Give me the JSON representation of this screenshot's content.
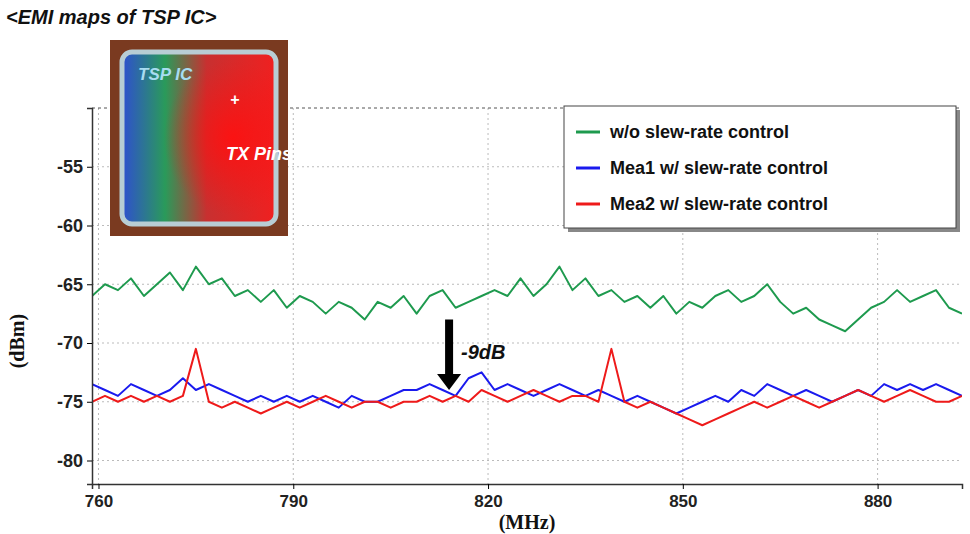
{
  "chart_data": {
    "type": "line",
    "title": "<EMI maps of TSP IC>",
    "x_label": "(MHz)",
    "y_label": "(dBm)",
    "inset_labels": [
      "TSP IC",
      "+",
      "TX Pins"
    ],
    "annotations": [
      {
        "text": "-9dB",
        "x": 814,
        "y_start": -68,
        "y_end": -74
      }
    ],
    "xlim": [
      759,
      893
    ],
    "xticks": [
      760,
      790,
      820,
      850,
      880
    ],
    "ylim": [
      -82,
      -50
    ],
    "yticks": [
      -80,
      -75,
      -70,
      -65,
      -60,
      -55
    ],
    "grid": true,
    "legend": "upper right",
    "x": [
      759,
      761,
      763,
      765,
      767,
      769,
      771,
      773,
      775,
      777,
      779,
      781,
      783,
      785,
      787,
      789,
      791,
      793,
      795,
      797,
      799,
      801,
      803,
      805,
      807,
      809,
      811,
      813,
      815,
      817,
      819,
      821,
      823,
      825,
      827,
      829,
      831,
      833,
      835,
      837,
      839,
      841,
      843,
      845,
      847,
      849,
      851,
      853,
      855,
      857,
      859,
      861,
      863,
      865,
      867,
      869,
      871,
      873,
      875,
      877,
      879,
      881,
      883,
      885,
      887,
      889,
      891,
      893
    ],
    "series": [
      {
        "name": "w/o slew-rate control",
        "color": "#1e9a4e",
        "values": [
          -66,
          -65,
          -65.5,
          -64.5,
          -66,
          -65,
          -64,
          -65.5,
          -63.5,
          -65,
          -64.5,
          -66,
          -65.5,
          -66.5,
          -65.5,
          -67,
          -66,
          -66.5,
          -67.5,
          -66.5,
          -67,
          -68,
          -66.5,
          -67,
          -66,
          -67.5,
          -66,
          -65.5,
          -67,
          -66.5,
          -66,
          -65.5,
          -66,
          -64.5,
          -66,
          -65,
          -63.5,
          -65.5,
          -64.5,
          -66,
          -65.5,
          -66.5,
          -66,
          -67,
          -66,
          -67.5,
          -66.5,
          -67,
          -66,
          -65.5,
          -66.5,
          -66,
          -65,
          -66.5,
          -67.5,
          -67,
          -68,
          -68.5,
          -69,
          -68,
          -67,
          -66.5,
          -65.5,
          -66.5,
          -66,
          -65.5,
          -67,
          -67.5
        ]
      },
      {
        "name": "Mea1 w/ slew-rate control",
        "color": "#1a1aee",
        "values": [
          -73.5,
          -74,
          -74.5,
          -73.5,
          -74,
          -74.5,
          -74,
          -73,
          -74,
          -73.5,
          -74,
          -74.5,
          -75,
          -74.5,
          -75,
          -74.5,
          -75,
          -74.5,
          -75,
          -75.5,
          -74.5,
          -75,
          -75,
          -74.5,
          -74,
          -74,
          -73.5,
          -74,
          -74.5,
          -73,
          -72.5,
          -74,
          -73.5,
          -74,
          -74.5,
          -74,
          -73.5,
          -74,
          -74.5,
          -74,
          -74.5,
          -75,
          -74.5,
          -75,
          -75.5,
          -76,
          -75.5,
          -75,
          -74.5,
          -75,
          -74,
          -74.5,
          -73.5,
          -74,
          -74.5,
          -74,
          -74.5,
          -75,
          -74.5,
          -74,
          -74.5,
          -73.5,
          -74,
          -73.5,
          -74,
          -73.5,
          -74,
          -74.5
        ]
      },
      {
        "name": "Mea2 w/ slew-rate control",
        "color": "#ee1a1a",
        "values": [
          -75,
          -74.5,
          -75,
          -74.5,
          -75,
          -74.5,
          -75,
          -74.5,
          -70.5,
          -75,
          -75.5,
          -75,
          -75.5,
          -76,
          -75.5,
          -75,
          -75.5,
          -75,
          -74.5,
          -75,
          -75.5,
          -75,
          -75,
          -75.5,
          -75,
          -75,
          -74.5,
          -75,
          -74.5,
          -75,
          -74,
          -74.5,
          -75,
          -74.5,
          -74,
          -74.5,
          -75,
          -74.5,
          -74.5,
          -75,
          -70.5,
          -75,
          -75.5,
          -75,
          -75.5,
          -76,
          -76.5,
          -77,
          -76.5,
          -76,
          -75.5,
          -75,
          -75.5,
          -75,
          -74.5,
          -75,
          -75.5,
          -75,
          -74.5,
          -74,
          -74.5,
          -75,
          -74.5,
          -74,
          -74.5,
          -75,
          -75,
          -74.5
        ]
      }
    ]
  }
}
